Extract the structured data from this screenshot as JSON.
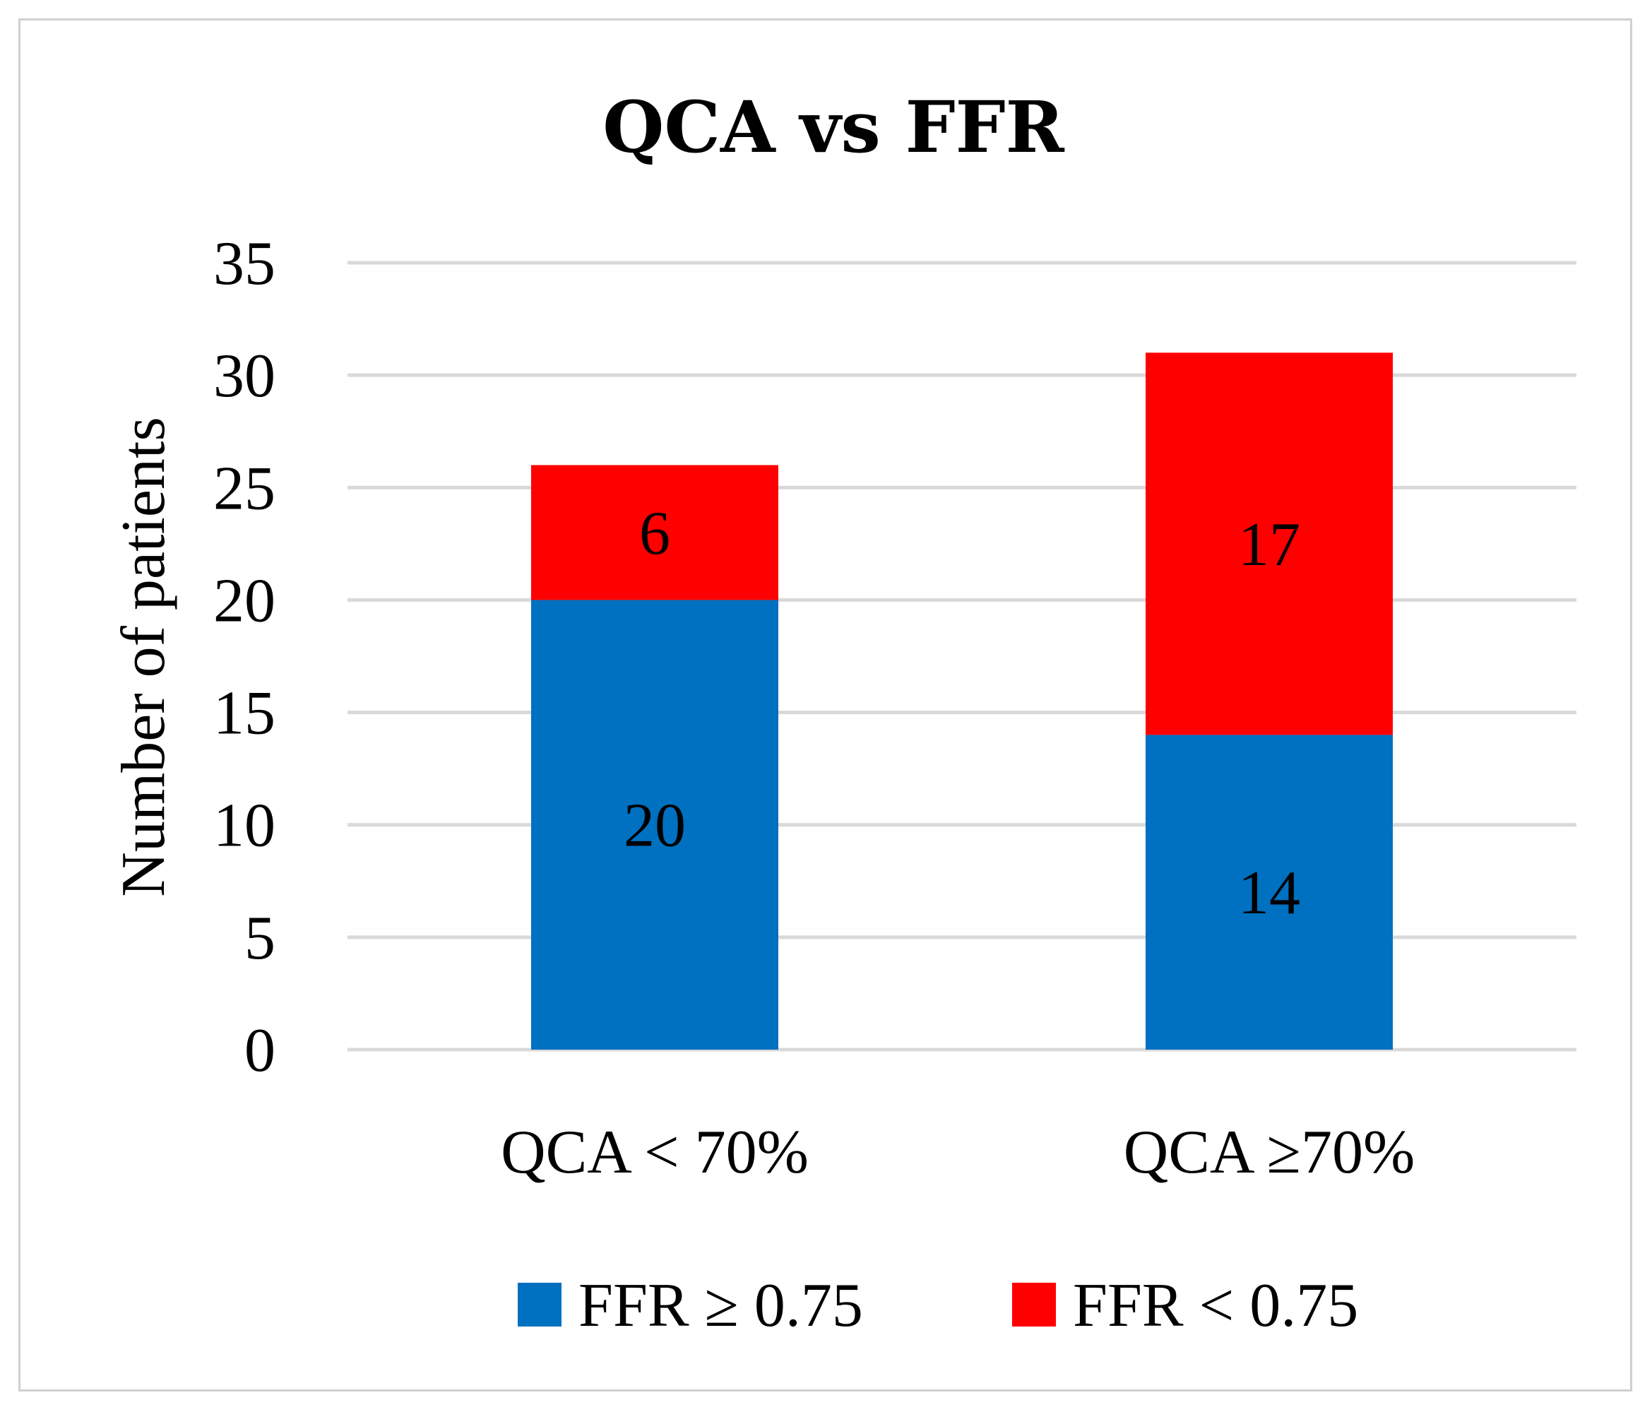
{
  "chart_data": {
    "type": "bar",
    "stacked": true,
    "title": "QCA vs FFR",
    "xlabel": "",
    "ylabel": "Number of patients",
    "ylim": [
      0,
      35
    ],
    "yticks": [
      "0",
      "5",
      "10",
      "15",
      "20",
      "25",
      "30",
      "35"
    ],
    "grid": true,
    "legend_position": "bottom",
    "categories": [
      "QCA < 70%",
      "QCA ≥70%"
    ],
    "series": [
      {
        "name": "FFR ≥ 0.75",
        "values": [
          20,
          14
        ],
        "labels": [
          "20",
          "14"
        ],
        "color": "#0070c0"
      },
      {
        "name": "FFR < 0.75",
        "values": [
          6,
          17
        ],
        "labels": [
          "6",
          "17"
        ],
        "color": "#ff0000"
      }
    ]
  }
}
